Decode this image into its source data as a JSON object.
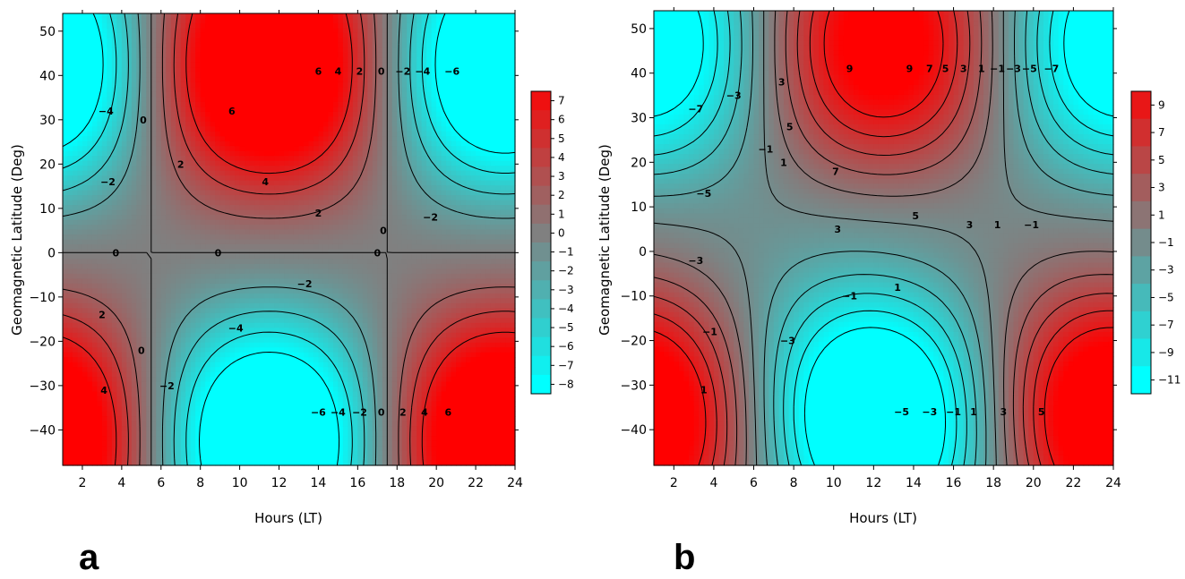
{
  "colors": {
    "low": "#00ffff",
    "mid": "#808080",
    "high": "#ff0000",
    "contour": "#000000"
  },
  "chart_data": [
    {
      "type": "heatmap",
      "panel_label": "a",
      "xlabel": "Hours (LT)",
      "ylabel": "Geomagnetic Latitude (Deg)",
      "xlim": [
        1,
        24
      ],
      "ylim": [
        -48,
        54
      ],
      "x_ticks": [
        "2",
        "4",
        "6",
        "8",
        "10",
        "12",
        "14",
        "16",
        "18",
        "20",
        "22",
        "24"
      ],
      "y_ticks": [
        "50",
        "40",
        "30",
        "20",
        "10",
        "0",
        "−10",
        "−20",
        "−30",
        "−40"
      ],
      "colorbar": {
        "range": [
          -8,
          8
        ],
        "tick_labels": [
          "7",
          "6",
          "5",
          "4",
          "3",
          "2",
          "1",
          "0",
          "−1",
          "−2",
          "−3",
          "−4",
          "−5",
          "−6",
          "−7",
          "−8"
        ]
      },
      "field": {
        "amplitude": 10,
        "x_center": 11.5,
        "x_period": 24,
        "lat_scale": 42,
        "lat_offset": 0,
        "notes": "positive near 40N at midday, negative near 40S at midday, sign reversal near 5.5 LT and 17.5 LT"
      },
      "contour_levels": [
        -8,
        -6,
        -4,
        -2,
        0,
        2,
        4,
        6
      ],
      "contour_labels": [
        {
          "text": "6",
          "x": 14.0,
          "y": 41
        },
        {
          "text": "4",
          "x": 15.0,
          "y": 41
        },
        {
          "text": "2",
          "x": 16.1,
          "y": 41
        },
        {
          "text": "0",
          "x": 17.2,
          "y": 41
        },
        {
          "text": "−2",
          "x": 18.3,
          "y": 41
        },
        {
          "text": "−4",
          "x": 19.3,
          "y": 41
        },
        {
          "text": "−6",
          "x": 20.8,
          "y": 41
        },
        {
          "text": "6",
          "x": 9.6,
          "y": 32
        },
        {
          "text": "4",
          "x": 11.3,
          "y": 16
        },
        {
          "text": "2",
          "x": 7.0,
          "y": 20
        },
        {
          "text": "0",
          "x": 5.1,
          "y": 30
        },
        {
          "text": "−4",
          "x": 3.2,
          "y": 32
        },
        {
          "text": "−2",
          "x": 3.3,
          "y": 16
        },
        {
          "text": "2",
          "x": 14.0,
          "y": 9
        },
        {
          "text": "−2",
          "x": 19.7,
          "y": 8
        },
        {
          "text": "0",
          "x": 17.3,
          "y": 5
        },
        {
          "text": "0",
          "x": 3.7,
          "y": 0
        },
        {
          "text": "0",
          "x": 8.9,
          "y": 0
        },
        {
          "text": "0",
          "x": 17.0,
          "y": 0
        },
        {
          "text": "−2",
          "x": 13.3,
          "y": -7
        },
        {
          "text": "−4",
          "x": 9.8,
          "y": -17
        },
        {
          "text": "0",
          "x": 5.0,
          "y": -22
        },
        {
          "text": "2",
          "x": 3.0,
          "y": -14
        },
        {
          "text": "−2",
          "x": 6.3,
          "y": -30
        },
        {
          "text": "4",
          "x": 3.1,
          "y": -31
        },
        {
          "text": "−6",
          "x": 14.0,
          "y": -36
        },
        {
          "text": "−4",
          "x": 15.0,
          "y": -36
        },
        {
          "text": "−2",
          "x": 16.1,
          "y": -36
        },
        {
          "text": "0",
          "x": 17.2,
          "y": -36
        },
        {
          "text": "2",
          "x": 18.3,
          "y": -36
        },
        {
          "text": "4",
          "x": 19.4,
          "y": -36
        },
        {
          "text": "6",
          "x": 20.6,
          "y": -36
        }
      ]
    },
    {
      "type": "heatmap",
      "panel_label": "b",
      "xlabel": "Hours (LT)",
      "ylabel": "Geomagnetic Latitude (Deg)",
      "xlim": [
        1,
        24
      ],
      "ylim": [
        -48,
        54
      ],
      "x_ticks": [
        "2",
        "4",
        "6",
        "8",
        "10",
        "12",
        "14",
        "16",
        "18",
        "20",
        "22",
        "24"
      ],
      "y_ticks": [
        "50",
        "40",
        "30",
        "20",
        "10",
        "0",
        "−10",
        "−20",
        "−30",
        "−40"
      ],
      "colorbar": {
        "range": [
          -11,
          10
        ],
        "tick_labels": [
          "9",
          "7",
          "5",
          "3",
          "1",
          "−1",
          "−3",
          "−5",
          "−7",
          "−9",
          "−11"
        ]
      },
      "field": {
        "amplitude": 10.5,
        "x_center": 12.5,
        "x_period": 24,
        "lat_scale": 42,
        "lat_offset": 4,
        "notes": "asymmetric pattern, positive maximum near 40N midday, negative minimum near 45S around 10 LT"
      },
      "contour_levels": [
        -11,
        -9,
        -7,
        -5,
        -3,
        -1,
        1,
        3,
        5,
        7,
        9
      ],
      "contour_labels": [
        {
          "text": "9",
          "x": 10.8,
          "y": 41
        },
        {
          "text": "9",
          "x": 13.8,
          "y": 41
        },
        {
          "text": "7",
          "x": 14.8,
          "y": 41
        },
        {
          "text": "5",
          "x": 15.6,
          "y": 41
        },
        {
          "text": "3",
          "x": 16.5,
          "y": 41
        },
        {
          "text": "1",
          "x": 17.4,
          "y": 41
        },
        {
          "text": "−1",
          "x": 18.2,
          "y": 41
        },
        {
          "text": "−3",
          "x": 19.0,
          "y": 41
        },
        {
          "text": "−5",
          "x": 19.8,
          "y": 41
        },
        {
          "text": "−7",
          "x": 20.9,
          "y": 41
        },
        {
          "text": "−3",
          "x": 5.0,
          "y": 35
        },
        {
          "text": "3",
          "x": 7.4,
          "y": 38
        },
        {
          "text": "−7",
          "x": 3.1,
          "y": 32
        },
        {
          "text": "5",
          "x": 7.8,
          "y": 28
        },
        {
          "text": "−1",
          "x": 6.6,
          "y": 23
        },
        {
          "text": "1",
          "x": 7.5,
          "y": 20
        },
        {
          "text": "7",
          "x": 10.1,
          "y": 18
        },
        {
          "text": "−5",
          "x": 3.5,
          "y": 13
        },
        {
          "text": "5",
          "x": 14.1,
          "y": 8
        },
        {
          "text": "3",
          "x": 10.2,
          "y": 5
        },
        {
          "text": "3",
          "x": 16.8,
          "y": 6
        },
        {
          "text": "1",
          "x": 18.2,
          "y": 6
        },
        {
          "text": "−1",
          "x": 19.9,
          "y": 6
        },
        {
          "text": "−3",
          "x": 3.1,
          "y": -2
        },
        {
          "text": "1",
          "x": 13.2,
          "y": -8
        },
        {
          "text": "−1",
          "x": 10.8,
          "y": -10
        },
        {
          "text": "−1",
          "x": 3.8,
          "y": -18
        },
        {
          "text": "−3",
          "x": 7.7,
          "y": -20
        },
        {
          "text": "1",
          "x": 3.5,
          "y": -31
        },
        {
          "text": "−5",
          "x": 13.4,
          "y": -36
        },
        {
          "text": "−3",
          "x": 14.8,
          "y": -36
        },
        {
          "text": "−1",
          "x": 16.0,
          "y": -36
        },
        {
          "text": "1",
          "x": 17.0,
          "y": -36
        },
        {
          "text": "3",
          "x": 18.5,
          "y": -36
        },
        {
          "text": "5",
          "x": 20.4,
          "y": -36
        }
      ]
    }
  ]
}
